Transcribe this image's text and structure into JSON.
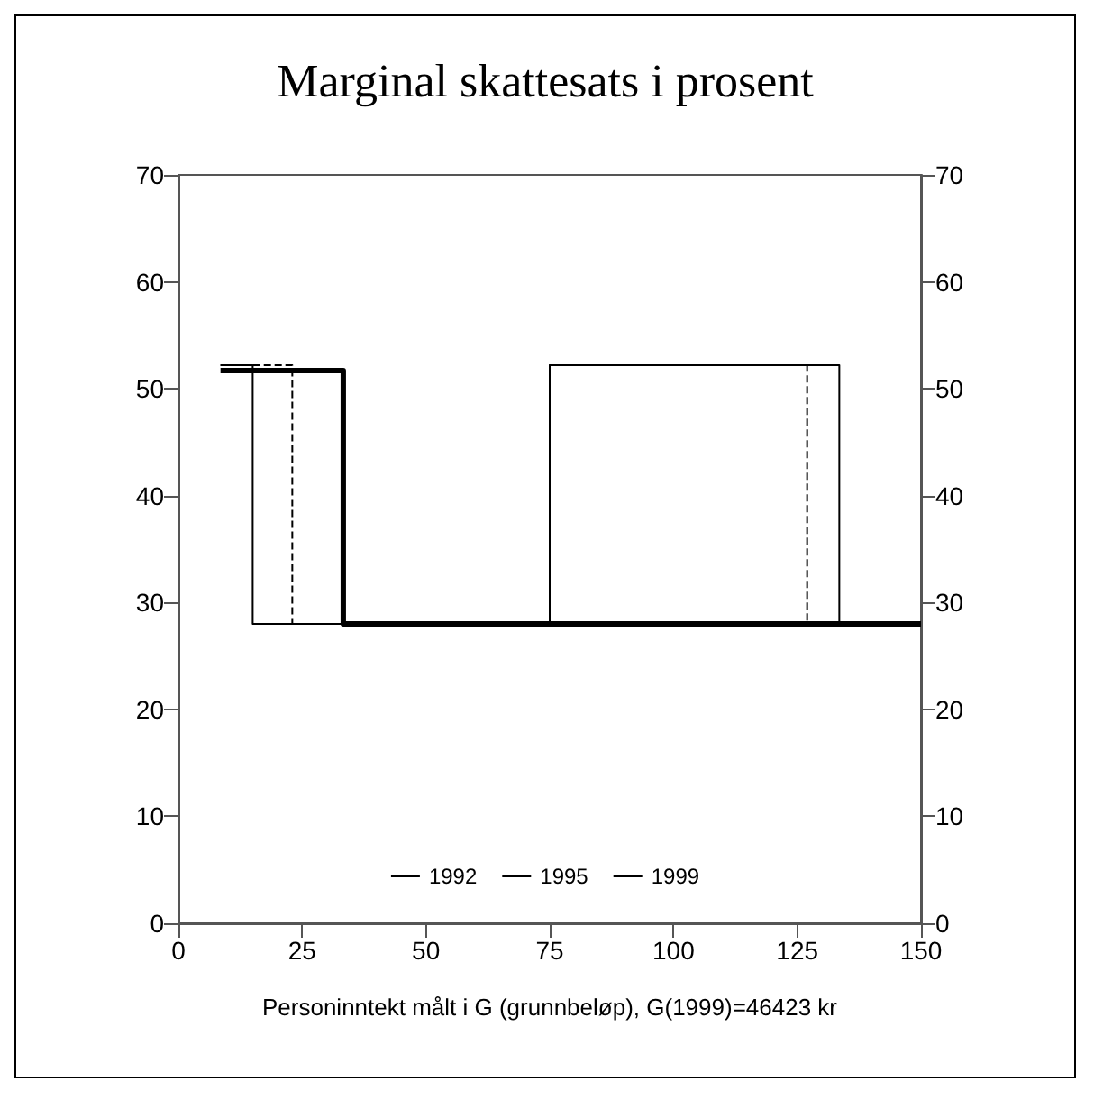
{
  "chart_data": {
    "type": "step",
    "title": "Marginal skattesats i prosent",
    "xlabel": "Personinntekt målt i G (grunnbeløp), G(1999)=46423 kr",
    "series": [
      {
        "name": "1992",
        "color": "#000000",
        "x": [
          8.5,
          33.3,
          150
        ],
        "values": [
          51.7,
          28,
          28
        ]
      },
      {
        "name": "1995",
        "color": "#000000",
        "line_style": "dashed",
        "x": [
          8.5,
          23,
          75,
          127,
          150
        ],
        "values": [
          52.2,
          28,
          52.2,
          28,
          28
        ]
      },
      {
        "name": "1999",
        "color": "#000000",
        "x": [
          8.5,
          15,
          75,
          133.5,
          150
        ],
        "values": [
          52.2,
          28,
          52.2,
          28,
          28
        ]
      }
    ],
    "xlim": [
      0,
      150
    ],
    "xticks": [
      0,
      25,
      50,
      75,
      100,
      125,
      150
    ],
    "ylim": [
      0,
      70
    ],
    "yticks": [
      0,
      10,
      20,
      30,
      40,
      50,
      60,
      70
    ],
    "y2lim": [
      0,
      70
    ],
    "y2ticks": [
      0,
      10,
      20,
      30,
      40,
      50,
      60,
      70
    ],
    "legend": "bottom",
    "grid": false
  }
}
